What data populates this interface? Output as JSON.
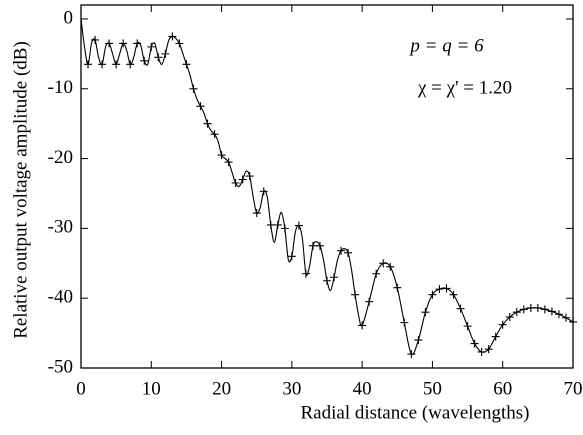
{
  "chart_data": {
    "type": "line",
    "xlabel": "Radial distance (wavelengths)",
    "ylabel": "Relative output voltage amplitude (dB)",
    "annotations": [
      "p = q = 6",
      "χ = χ' = 1.20"
    ],
    "xlim": [
      0,
      70
    ],
    "xticks": [
      0,
      10,
      20,
      30,
      40,
      50,
      60,
      70
    ],
    "ylim": [
      -50,
      2
    ],
    "yticks": [
      0,
      -10,
      -20,
      -30,
      -40,
      -50
    ],
    "series": [
      {
        "color": "#000000",
        "marker": "none",
        "x": [
          0,
          0.5,
          1,
          1.5,
          2,
          2.5,
          3,
          3.5,
          4,
          4.5,
          5,
          5.5,
          6,
          6.5,
          7,
          7.5,
          8,
          8.5,
          9,
          9.5,
          10,
          10.5,
          11,
          11.5,
          12,
          12.5,
          13,
          13.5,
          14,
          14.5,
          15,
          15.5,
          16,
          16.5,
          17,
          17.5,
          18,
          18.5,
          19,
          19.5,
          20,
          20.5,
          21,
          21.5,
          22,
          22.5,
          23,
          23.5,
          24,
          24.5,
          25,
          25.5,
          26,
          26.5,
          27,
          27.5,
          28,
          28.5,
          29,
          29.5,
          30,
          30.5,
          31,
          31.5,
          32,
          32.5,
          33,
          33.5,
          34,
          34.5,
          35,
          35.5,
          36,
          36.5,
          37,
          37.5,
          38,
          38.5,
          39,
          39.5,
          40,
          41,
          42,
          43,
          44,
          45,
          46,
          47,
          48,
          49,
          50,
          51,
          52,
          53,
          54,
          55,
          56,
          57,
          58,
          59,
          60,
          61,
          62,
          63,
          64,
          65,
          66,
          67,
          68,
          69,
          70
        ],
        "values": [
          0,
          -4,
          -6.5,
          -3.5,
          -3,
          -5.5,
          -6.5,
          -4,
          -3.5,
          -5,
          -6.5,
          -5,
          -3.5,
          -4.5,
          -6.5,
          -5.5,
          -3.5,
          -3.8,
          -6,
          -6.5,
          -4,
          -3.5,
          -5.5,
          -6.5,
          -5,
          -3,
          -2.5,
          -2.8,
          -3.5,
          -5,
          -6.5,
          -8,
          -10,
          -11.5,
          -12.5,
          -13.5,
          -15,
          -16,
          -16.5,
          -17.5,
          -19.5,
          -20,
          -20.5,
          -22,
          -23.5,
          -24,
          -23,
          -21.8,
          -22.5,
          -25.5,
          -27.8,
          -27,
          -24.7,
          -25.5,
          -29.5,
          -32,
          -29.5,
          -27.7,
          -30,
          -34.5,
          -34,
          -30.5,
          -29.6,
          -31.5,
          -36.5,
          -35.5,
          -32.5,
          -31.9,
          -32.5,
          -34.5,
          -37.5,
          -38.9,
          -37,
          -34.5,
          -33.2,
          -32.9,
          -33.5,
          -36,
          -39.5,
          -42.5,
          -43.9,
          -40.5,
          -36.5,
          -35,
          -35.5,
          -38.5,
          -43.5,
          -48,
          -46,
          -42,
          -39.5,
          -38.7,
          -38.6,
          -39.5,
          -41.5,
          -44,
          -46.5,
          -47.7,
          -47.3,
          -45.5,
          -43.8,
          -42.7,
          -42,
          -41.6,
          -41.4,
          -41.4,
          -41.6,
          -41.9,
          -42.3,
          -42.8,
          -43.4
        ]
      },
      {
        "color": "#000000",
        "marker": "+",
        "x": [
          1,
          2,
          3,
          4,
          5,
          6,
          7,
          8,
          9,
          10,
          11,
          12,
          13,
          14,
          15,
          16,
          17,
          18,
          19,
          20,
          21,
          22,
          23,
          24,
          25,
          26,
          27,
          28,
          29,
          30,
          31,
          32,
          33,
          34,
          35,
          36,
          37,
          38,
          39,
          40,
          41,
          42,
          43,
          44,
          45,
          46,
          47,
          48,
          49,
          50,
          51,
          52,
          53,
          54,
          55,
          56,
          57,
          58,
          59,
          60,
          61,
          62,
          63,
          64,
          65,
          66,
          67,
          68,
          69,
          70
        ],
        "values": [
          -6.5,
          -3,
          -6.5,
          -3.5,
          -6.5,
          -3.5,
          -6.5,
          -3.5,
          -6,
          -4,
          -5.5,
          -5,
          -2.5,
          -3.5,
          -6.5,
          -10,
          -12.5,
          -15,
          -16.5,
          -19.5,
          -20.5,
          -23.5,
          -23,
          -22.5,
          -27.8,
          -24.7,
          -29.5,
          -29.5,
          -30,
          -34,
          -29.6,
          -36.5,
          -32.5,
          -32.5,
          -37.5,
          -37,
          -33.2,
          -33.5,
          -39.5,
          -43.9,
          -40.5,
          -36.5,
          -35,
          -35.5,
          -38.5,
          -43.5,
          -48,
          -46,
          -42,
          -39.5,
          -38.7,
          -38.6,
          -39.5,
          -41.5,
          -44,
          -46.5,
          -47.7,
          -47.3,
          -45.5,
          -43.8,
          -42.7,
          -42,
          -41.6,
          -41.4,
          -41.4,
          -41.6,
          -41.9,
          -42.3,
          -42.8,
          -43.4
        ]
      }
    ]
  }
}
